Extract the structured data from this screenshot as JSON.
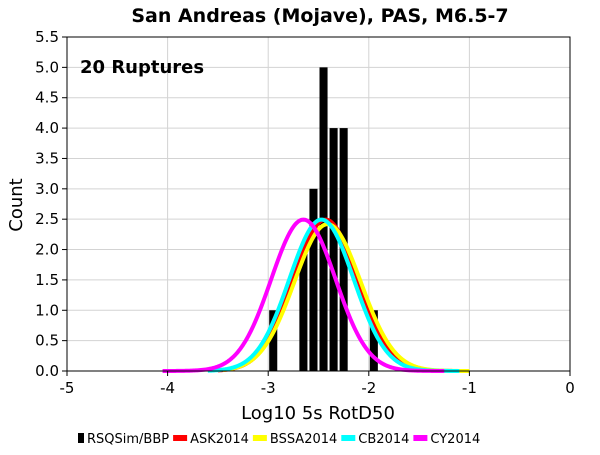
{
  "chart_data": {
    "type": "bar",
    "title": "San Andreas (Mojave), PAS, M6.5-7",
    "annotation": "20 Ruptures",
    "xlabel": "Log10 5s RotD50",
    "ylabel": "Count",
    "xlim": [
      -5,
      0
    ],
    "ylim": [
      0,
      5.5
    ],
    "x_ticks": [
      -5,
      -4,
      -3,
      -2,
      -1,
      0
    ],
    "x_tick_labels": [
      "-5",
      "-4",
      "-3",
      "-2",
      "-1",
      "0"
    ],
    "y_ticks": [
      0,
      0.5,
      1,
      1.5,
      2,
      2.5,
      3,
      3.5,
      4,
      4.5,
      5,
      5.5
    ],
    "y_tick_labels": [
      "0.0",
      "0.5",
      "1.0",
      "1.5",
      "2.0",
      "2.5",
      "3.0",
      "3.5",
      "4.0",
      "4.5",
      "5.0",
      "5.5"
    ],
    "grid": true,
    "legend_position": "bottom",
    "histogram": {
      "name": "RSQSim/BBP",
      "color": "#000000",
      "bin_width": 0.1,
      "bins": [
        {
          "center": -2.95,
          "count": 1
        },
        {
          "center": -2.65,
          "count": 2
        },
        {
          "center": -2.55,
          "count": 3
        },
        {
          "center": -2.45,
          "count": 5
        },
        {
          "center": -2.35,
          "count": 4
        },
        {
          "center": -2.25,
          "count": 4
        },
        {
          "center": -1.95,
          "count": 1
        }
      ]
    },
    "series": [
      {
        "name": "ASK2014",
        "color": "#ff0000",
        "mean": -2.43,
        "sigma": 0.32,
        "x_range": [
          -3.5,
          -1.1
        ]
      },
      {
        "name": "BSSA2014",
        "color": "#ffff00",
        "mean": -2.41,
        "sigma": 0.33,
        "x_range": [
          -3.45,
          -1.0
        ]
      },
      {
        "name": "CB2014",
        "color": "#00ffff",
        "mean": -2.47,
        "sigma": 0.32,
        "x_range": [
          -3.6,
          -1.1
        ]
      },
      {
        "name": "CY2014",
        "color": "#ff00ff",
        "mean": -2.65,
        "sigma": 0.32,
        "x_range": [
          -4.05,
          -1.25
        ]
      }
    ]
  }
}
